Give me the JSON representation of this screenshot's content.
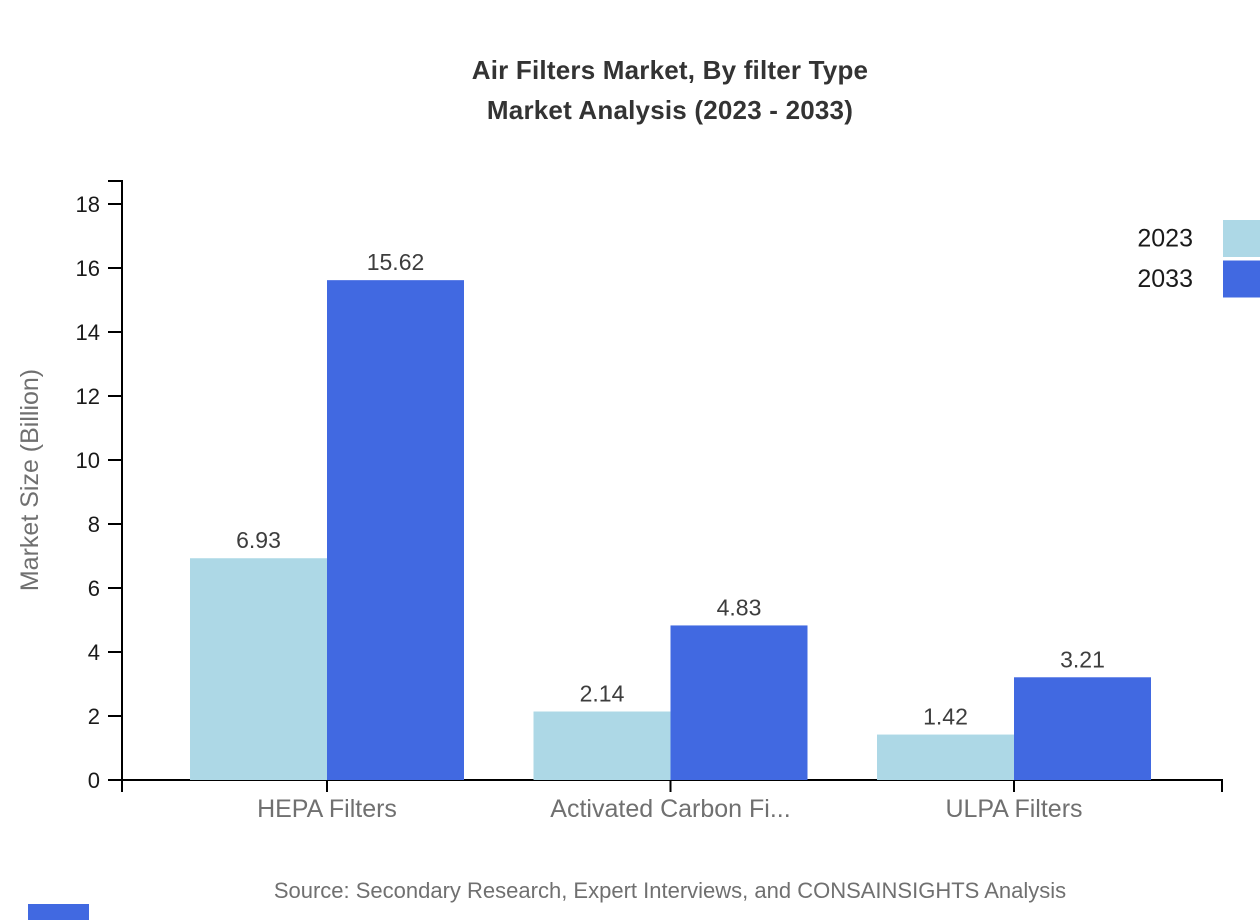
{
  "title": {
    "line1": "Air Filters Market, By filter Type",
    "line2": "Market Analysis (2023 - 2033)"
  },
  "source": "Source: Secondary Research, Expert Interviews, and CONSAINSIGHTS Analysis",
  "chart_data": {
    "type": "bar",
    "title": "Air Filters Market, By filter Type Market Analysis (2023 - 2033)",
    "categories": [
      "HEPA Filters",
      "Activated Carbon Fi...",
      "ULPA Filters"
    ],
    "series": [
      {
        "name": "2023",
        "color": "#ADD8E6",
        "values": [
          6.93,
          2.14,
          1.42
        ]
      },
      {
        "name": "2033",
        "color": "#4169E1",
        "values": [
          15.62,
          4.83,
          3.21
        ]
      }
    ],
    "xlabel": "",
    "ylabel": "Market Size (Billion)",
    "ylim": [
      0,
      18
    ],
    "yticks": [
      0,
      2,
      4,
      6,
      8,
      10,
      12,
      14,
      16,
      18
    ],
    "grid": false,
    "legend_position": "top-right",
    "value_labels": true,
    "value_label_format": "2-decimals"
  },
  "colors": {
    "series_2023": "#ADD8E6",
    "series_2033": "#4169E1",
    "axis": "#000000",
    "tick_text": "#1a1a1a",
    "category_text": "#707070",
    "value_text": "#3d3d3d",
    "muted_text": "#707070"
  }
}
